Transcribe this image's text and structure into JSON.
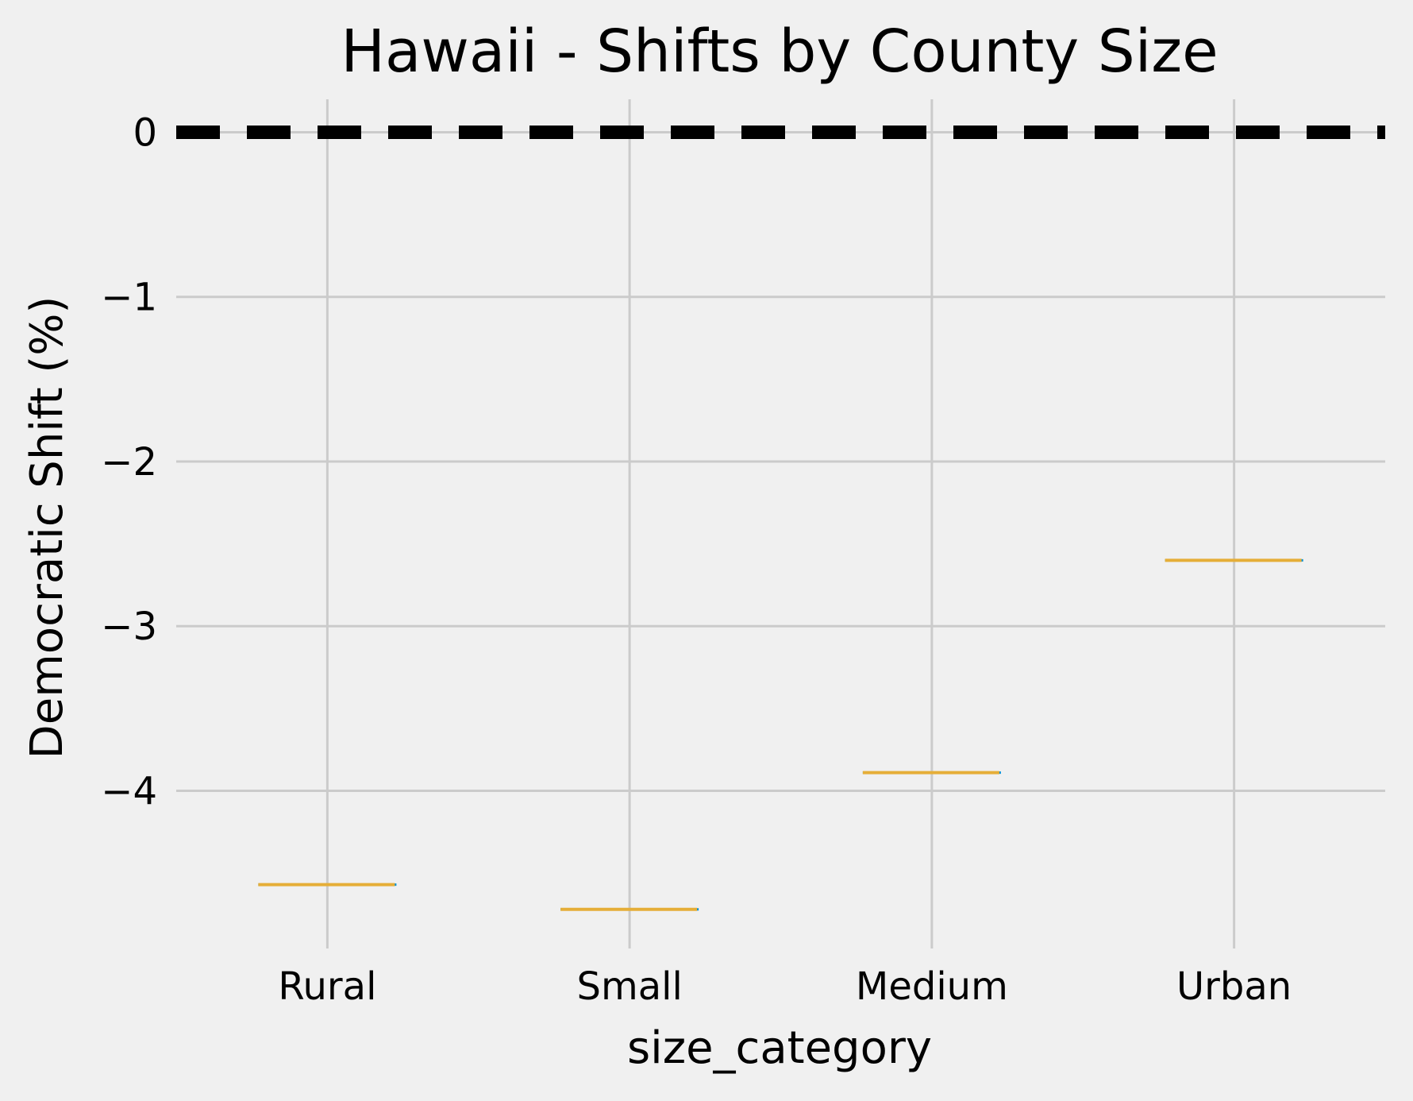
{
  "chart_data": {
    "type": "box",
    "title": "Hawaii - Shifts by County Size",
    "xlabel": "size_category",
    "ylabel": "Democratic Shift (%)",
    "categories": [
      "Rural",
      "Small",
      "Medium",
      "Urban"
    ],
    "values": [
      -4.57,
      -4.72,
      -3.89,
      -2.6
    ],
    "yticks": [
      0,
      -1,
      -2,
      -3,
      -4
    ],
    "ytick_labels": [
      "0",
      "−1",
      "−2",
      "−3",
      "−4"
    ],
    "ylim": [
      -4.9,
      0.2
    ],
    "reference_line": {
      "y": 0,
      "style": "dashed",
      "color": "#000000"
    },
    "grid": true,
    "colors": {
      "background": "#f0f0f0",
      "grid": "#cbcbcb",
      "median": "#e5ae38",
      "box_edge": "#008fd5",
      "text": "#000000"
    }
  }
}
